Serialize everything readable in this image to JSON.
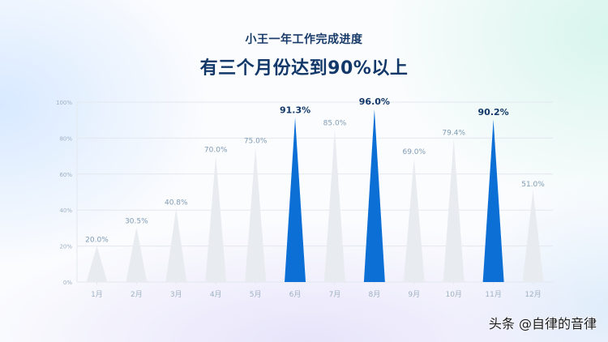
{
  "header": {
    "subtitle": "小王一年工作完成进度",
    "title": "有三个月份达到90%以上"
  },
  "watermark": "头条 @自律的音律",
  "colors": {
    "highlight": "#0b6fd6",
    "normal": "#e8ecf0",
    "grid": "#e3e8ee",
    "label": "#7f9bb3",
    "highlight_label": "#123869",
    "axis_text": "#9fb1c3"
  },
  "chart_data": {
    "type": "bar",
    "mark_shape": "triangle",
    "categories": [
      "1月",
      "2月",
      "3月",
      "4月",
      "5月",
      "6月",
      "7月",
      "8月",
      "9月",
      "10月",
      "11月",
      "12月"
    ],
    "values": [
      20.0,
      30.5,
      40.8,
      70.0,
      75.0,
      91.3,
      85.0,
      96.0,
      69.0,
      79.4,
      90.2,
      51.0
    ],
    "data_labels": [
      "20.0%",
      "30.5%",
      "40.8%",
      "70.0%",
      "75.0%",
      "91.3%",
      "85.0%",
      "96.0%",
      "69.0%",
      "79.4%",
      "90.2%",
      "51.0%"
    ],
    "highlighted": [
      "6月",
      "8月",
      "11月"
    ],
    "ylim": [
      0,
      100
    ],
    "yticks": [
      0,
      20,
      40,
      60,
      80,
      100
    ],
    "ytick_labels": [
      "0%",
      "20%",
      "40%",
      "60%",
      "80%",
      "100%"
    ],
    "grid": true,
    "title": "有三个月份达到90%以上",
    "subtitle": "小王一年工作完成进度"
  }
}
